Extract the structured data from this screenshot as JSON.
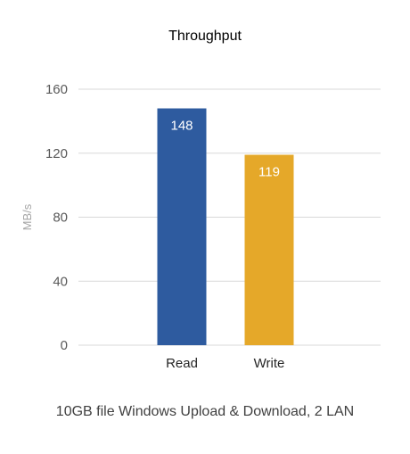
{
  "chart_data": {
    "type": "bar",
    "title": "Throughput",
    "caption": "10GB file Windows Upload & Download, 2 LAN",
    "ylabel": "MB/s",
    "xlabel": "",
    "categories": [
      "Read",
      "Write"
    ],
    "values": [
      148,
      119
    ],
    "data_labels": [
      "148",
      "119"
    ],
    "ylim": [
      0,
      160
    ],
    "yticks": [
      0,
      40,
      80,
      120,
      160
    ],
    "ytick_labels": [
      "0",
      "40",
      "80",
      "120",
      "160"
    ],
    "grid": true,
    "legend": "none",
    "colors": [
      "#2e5b9f",
      "#e5a829"
    ],
    "grid_color": "#d9d9d9"
  }
}
